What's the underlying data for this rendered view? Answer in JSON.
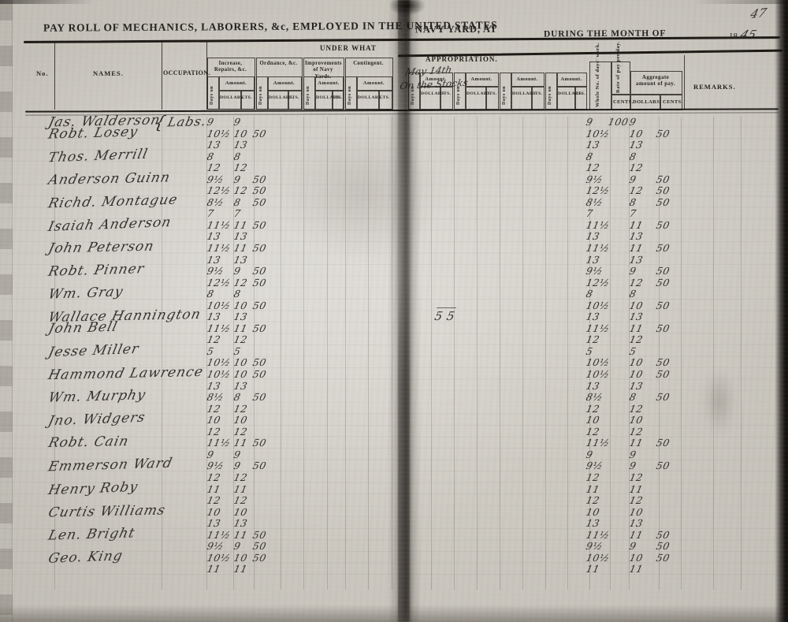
{
  "page": {
    "handwritten_page_number": "47",
    "title": "PAY ROLL OF MECHANICS, LABORERS, &c, EMPLOYED IN THE UNITED STATES",
    "title_navy_yard": "NAVY YARD, AT",
    "title_during": "DURING THE MONTH OF",
    "year_printed": "18",
    "year_handwritten": "45"
  },
  "table_header": {
    "under_what": "UNDER WHAT",
    "appropriation": "APPROPRIATION.",
    "no": "No.",
    "names": "NAMES.",
    "occupation": "OCCUPATION.",
    "groups": [
      "Increase, Repairs, &c.",
      "Ordnance, &c.",
      "Improvements of Navy Yards.",
      "Contingent."
    ],
    "days_on": "Days on",
    "amount": "Amount.",
    "dollars": "DOLLARS.",
    "cts": "CTS.",
    "handwritten_note_line1": "May 14th",
    "handwritten_note_line2": "On the Stocks",
    "whole_days": "Whole No. of days' work.",
    "rate_of_pay": "Rate of pay per day.",
    "cents": "CENTS.",
    "aggregate": "Aggregate amount of pay.",
    "agg_dollars": "DOLLARS.",
    "agg_cents": "CENTS.",
    "remarks": "REMARKS."
  },
  "rate_first_row_cents": "100",
  "stray_mark": "5  5",
  "rows": [
    {
      "name": "Jas. Walderson",
      "occupation": "Labs.",
      "lines": [
        {
          "days": "9",
          "dollars": "9",
          "cents": ""
        }
      ]
    },
    {
      "name": "Robt. Losey",
      "occupation": "",
      "lines": [
        {
          "days": "10½",
          "dollars": "10",
          "cents": "50"
        },
        {
          "days": "13",
          "dollars": "13",
          "cents": ""
        }
      ]
    },
    {
      "name": "Thos. Merrill",
      "occupation": "",
      "lines": [
        {
          "days": "8",
          "dollars": "8",
          "cents": ""
        },
        {
          "days": "12",
          "dollars": "12",
          "cents": ""
        }
      ]
    },
    {
      "name": "Anderson Guinn",
      "occupation": "",
      "lines": [
        {
          "days": "9½",
          "dollars": "9",
          "cents": "50"
        },
        {
          "days": "12½",
          "dollars": "12",
          "cents": "50"
        }
      ]
    },
    {
      "name": "Richd. Montague",
      "occupation": "",
      "lines": [
        {
          "days": "8½",
          "dollars": "8",
          "cents": "50"
        },
        {
          "days": "7",
          "dollars": "7",
          "cents": ""
        }
      ]
    },
    {
      "name": "Isaiah Anderson",
      "occupation": "",
      "lines": [
        {
          "days": "11½",
          "dollars": "11",
          "cents": "50"
        },
        {
          "days": "13",
          "dollars": "13",
          "cents": ""
        }
      ]
    },
    {
      "name": "John Peterson",
      "occupation": "",
      "lines": [
        {
          "days": "11½",
          "dollars": "11",
          "cents": "50"
        },
        {
          "days": "13",
          "dollars": "13",
          "cents": ""
        }
      ]
    },
    {
      "name": "Robt. Pinner",
      "occupation": "",
      "lines": [
        {
          "days": "9½",
          "dollars": "9",
          "cents": "50"
        },
        {
          "days": "12½",
          "dollars": "12",
          "cents": "50"
        }
      ]
    },
    {
      "name": "Wm. Gray",
      "occupation": "",
      "lines": [
        {
          "days": "8",
          "dollars": "8",
          "cents": ""
        },
        {
          "days": "10½",
          "dollars": "10",
          "cents": "50"
        }
      ]
    },
    {
      "name": "Wallace Hannington",
      "occupation": "",
      "lines": [
        {
          "days": "13",
          "dollars": "13",
          "cents": ""
        }
      ]
    },
    {
      "name": "John Bell",
      "occupation": "",
      "lines": [
        {
          "days": "11½",
          "dollars": "11",
          "cents": "50"
        },
        {
          "days": "12",
          "dollars": "12",
          "cents": ""
        }
      ]
    },
    {
      "name": "Jesse Miller",
      "occupation": "",
      "lines": [
        {
          "days": "5",
          "dollars": "5",
          "cents": ""
        },
        {
          "days": "10½",
          "dollars": "10",
          "cents": "50"
        }
      ]
    },
    {
      "name": "Hammond Lawrence",
      "occupation": "",
      "lines": [
        {
          "days": "10½",
          "dollars": "10",
          "cents": "50"
        },
        {
          "days": "13",
          "dollars": "13",
          "cents": ""
        }
      ]
    },
    {
      "name": "Wm. Murphy",
      "occupation": "",
      "lines": [
        {
          "days": "8½",
          "dollars": "8",
          "cents": "50"
        },
        {
          "days": "12",
          "dollars": "12",
          "cents": ""
        }
      ]
    },
    {
      "name": "Jno. Widgers",
      "occupation": "",
      "lines": [
        {
          "days": "10",
          "dollars": "10",
          "cents": ""
        },
        {
          "days": "12",
          "dollars": "12",
          "cents": ""
        }
      ]
    },
    {
      "name": "Robt. Cain",
      "occupation": "",
      "lines": [
        {
          "days": "11½",
          "dollars": "11",
          "cents": "50"
        },
        {
          "days": "9",
          "dollars": "9",
          "cents": ""
        }
      ]
    },
    {
      "name": "Emmerson Ward",
      "occupation": "",
      "lines": [
        {
          "days": "9½",
          "dollars": "9",
          "cents": "50"
        },
        {
          "days": "12",
          "dollars": "12",
          "cents": ""
        }
      ]
    },
    {
      "name": "Henry Roby",
      "occupation": "",
      "lines": [
        {
          "days": "11",
          "dollars": "11",
          "cents": ""
        },
        {
          "days": "12",
          "dollars": "12",
          "cents": ""
        }
      ]
    },
    {
      "name": "Curtis Williams",
      "occupation": "",
      "lines": [
        {
          "days": "10",
          "dollars": "10",
          "cents": ""
        },
        {
          "days": "13",
          "dollars": "13",
          "cents": ""
        }
      ]
    },
    {
      "name": "Len. Bright",
      "occupation": "",
      "lines": [
        {
          "days": "11½",
          "dollars": "11",
          "cents": "50"
        },
        {
          "days": "9½",
          "dollars": "9",
          "cents": "50"
        }
      ]
    },
    {
      "name": "Geo. King",
      "occupation": "",
      "lines": [
        {
          "days": "10½",
          "dollars": "10",
          "cents": "50"
        },
        {
          "days": "11",
          "dollars": "11",
          "cents": ""
        }
      ]
    }
  ]
}
